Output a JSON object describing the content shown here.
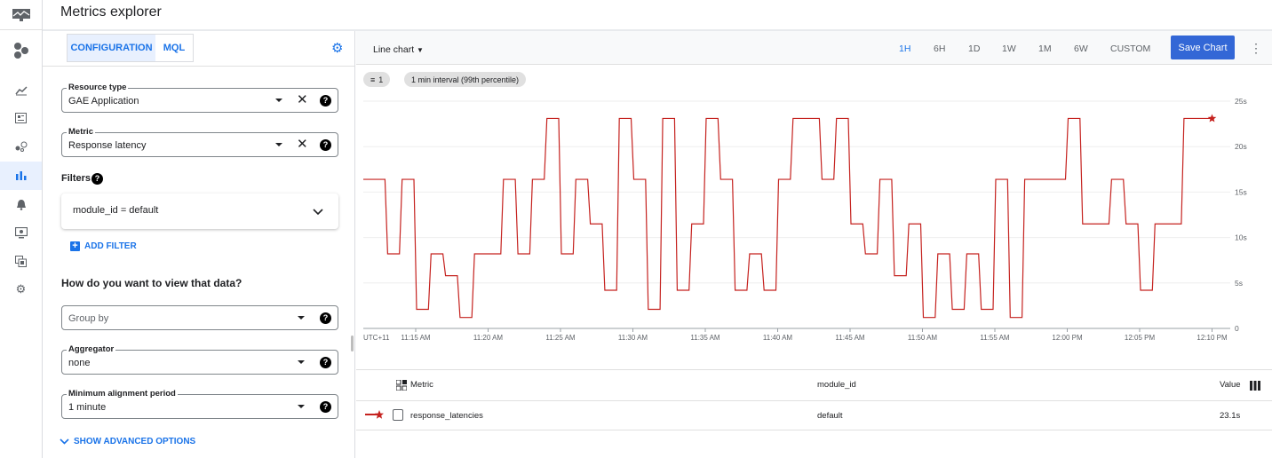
{
  "header": {
    "title": "Metrics explorer"
  },
  "nav": {
    "items": [
      {
        "icon": "monitoring-logo-icon"
      },
      {
        "icon": "hexagons-icon"
      },
      {
        "icon": "chart-line-icon"
      },
      {
        "icon": "dashboard-icon"
      },
      {
        "icon": "services-icon"
      },
      {
        "icon": "metrics-explorer-icon",
        "active": true
      },
      {
        "icon": "bell-icon"
      },
      {
        "icon": "uptime-icon"
      },
      {
        "icon": "groups-icon"
      },
      {
        "icon": "settings-icon"
      }
    ]
  },
  "config": {
    "tabs": [
      {
        "label": "CONFIGURATION",
        "active": true
      },
      {
        "label": "MQL",
        "active": false
      }
    ],
    "resource_type": {
      "label": "Resource type",
      "value": "GAE Application"
    },
    "metric": {
      "label": "Metric",
      "value": "Response latency"
    },
    "filters_label": "Filters",
    "filter_value": "module_id = default",
    "add_filter": "ADD FILTER",
    "view_heading": "How do you want to view that data?",
    "group_by": {
      "placeholder": "Group by"
    },
    "aggregator": {
      "label": "Aggregator",
      "value": "none"
    },
    "alignment": {
      "label": "Minimum alignment period",
      "value": "1 minute"
    },
    "advanced": "SHOW ADVANCED OPTIONS"
  },
  "toolbar": {
    "chart_type": "Line chart",
    "ranges": [
      {
        "label": "1H",
        "active": true
      },
      {
        "label": "6H"
      },
      {
        "label": "1D"
      },
      {
        "label": "1W"
      },
      {
        "label": "1M"
      },
      {
        "label": "6W"
      },
      {
        "label": "CUSTOM"
      }
    ],
    "save": "Save Chart",
    "filter_chip": "1",
    "interval_chip": "1 min interval (99th percentile)"
  },
  "chart_data": {
    "type": "line",
    "timezone_label": "UTC+11",
    "color": "#c5221f",
    "x_ticks": [
      "11:15 AM",
      "11:20 AM",
      "11:25 AM",
      "11:30 AM",
      "11:35 AM",
      "11:40 AM",
      "11:45 AM",
      "11:50 AM",
      "11:55 AM",
      "12:00 PM",
      "12:05 PM",
      "12:10 PM"
    ],
    "y_ticks": [
      "0",
      "5s",
      "10s",
      "15s",
      "20s",
      "25s"
    ],
    "ylim": [
      0,
      25
    ],
    "grid": true,
    "series": [
      {
        "name": "response_latencies",
        "x": [
          "11:11",
          "11:12",
          "11:13",
          "11:14",
          "11:15",
          "11:16",
          "11:17",
          "11:18",
          "11:19",
          "11:20",
          "11:21",
          "11:22",
          "11:23",
          "11:24",
          "11:25",
          "11:26",
          "11:27",
          "11:28",
          "11:29",
          "11:30",
          "11:31",
          "11:32",
          "11:33",
          "11:34",
          "11:35",
          "11:36",
          "11:37",
          "11:38",
          "11:39",
          "11:40",
          "11:41",
          "11:42",
          "11:43",
          "11:44",
          "11:45",
          "11:46",
          "11:47",
          "11:48",
          "11:49",
          "11:50",
          "11:51",
          "11:52",
          "11:53",
          "11:54",
          "11:55",
          "11:56",
          "11:57",
          "11:58",
          "11:59",
          "12:00",
          "12:01",
          "12:02",
          "12:03",
          "12:04",
          "12:05",
          "12:06",
          "12:07",
          "12:08",
          "12:09",
          "12:10"
        ],
        "y": [
          16.4,
          16.4,
          8.2,
          16.4,
          2.1,
          8.2,
          5.8,
          1.2,
          8.2,
          8.2,
          16.4,
          8.2,
          16.4,
          23.1,
          8.2,
          16.4,
          11.5,
          4.2,
          23.1,
          16.4,
          2.1,
          23.1,
          4.2,
          11.5,
          23.1,
          16.4,
          4.2,
          8.2,
          4.2,
          16.4,
          23.1,
          23.1,
          16.4,
          23.1,
          11.5,
          8.2,
          16.4,
          5.8,
          11.5,
          1.2,
          8.2,
          2.1,
          8.2,
          2.1,
          16.4,
          1.2,
          16.4,
          16.4,
          16.4,
          23.1,
          11.5,
          11.5,
          16.4,
          11.5,
          4.2,
          11.5,
          11.5,
          23.1,
          23.1,
          23.1
        ]
      }
    ]
  },
  "table": {
    "headers": {
      "metric": "Metric",
      "module_id": "module_id",
      "value": "Value"
    },
    "rows": [
      {
        "metric": "response_latencies",
        "module_id": "default",
        "value": "23.1s"
      }
    ]
  }
}
